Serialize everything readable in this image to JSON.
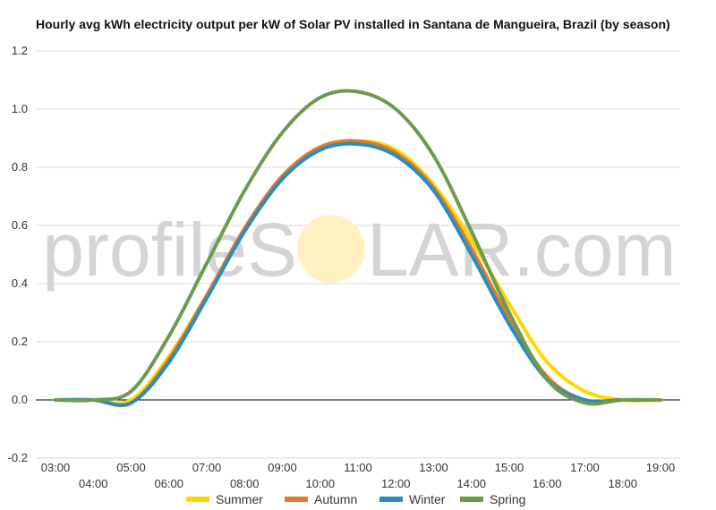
{
  "chart_data": {
    "type": "line",
    "title": "Hourly avg kWh electricity output per kW of Solar PV installed in Santana de Mangueira, Brazil (by season)",
    "xlabel": "",
    "ylabel": "",
    "x": [
      "03:00",
      "04:00",
      "05:00",
      "06:00",
      "07:00",
      "08:00",
      "09:00",
      "10:00",
      "11:00",
      "12:00",
      "13:00",
      "14:00",
      "15:00",
      "16:00",
      "17:00",
      "18:00",
      "19:00"
    ],
    "ylim": [
      -0.2,
      1.2
    ],
    "yticks": [
      -0.2,
      0.0,
      0.2,
      0.4,
      0.6,
      0.8,
      1.0,
      1.2
    ],
    "grid": true,
    "legend_position": "bottom",
    "series": [
      {
        "name": "Summer",
        "color": "#FFD700",
        "values": [
          0,
          0,
          0.0,
          0.15,
          0.36,
          0.58,
          0.76,
          0.86,
          0.89,
          0.86,
          0.74,
          0.55,
          0.33,
          0.13,
          0.03,
          0.0,
          0
        ]
      },
      {
        "name": "Autumn",
        "color": "#E07B28",
        "values": [
          0,
          0,
          -0.01,
          0.14,
          0.36,
          0.59,
          0.77,
          0.87,
          0.89,
          0.85,
          0.73,
          0.52,
          0.28,
          0.08,
          0.0,
          0.0,
          0
        ]
      },
      {
        "name": "Winter",
        "color": "#2B8CBE",
        "values": [
          0,
          0,
          -0.01,
          0.13,
          0.35,
          0.58,
          0.76,
          0.86,
          0.88,
          0.84,
          0.72,
          0.5,
          0.26,
          0.07,
          0.0,
          0.0,
          0
        ]
      },
      {
        "name": "Spring",
        "color": "#6E9A50",
        "values": [
          0,
          0,
          0.03,
          0.22,
          0.47,
          0.72,
          0.92,
          1.04,
          1.06,
          1.0,
          0.84,
          0.58,
          0.3,
          0.07,
          -0.01,
          0.0,
          0
        ]
      }
    ]
  },
  "watermark": {
    "text_left": "profileS",
    "text_right": "LAR.com",
    "sun_color": "#FFF1C2"
  }
}
